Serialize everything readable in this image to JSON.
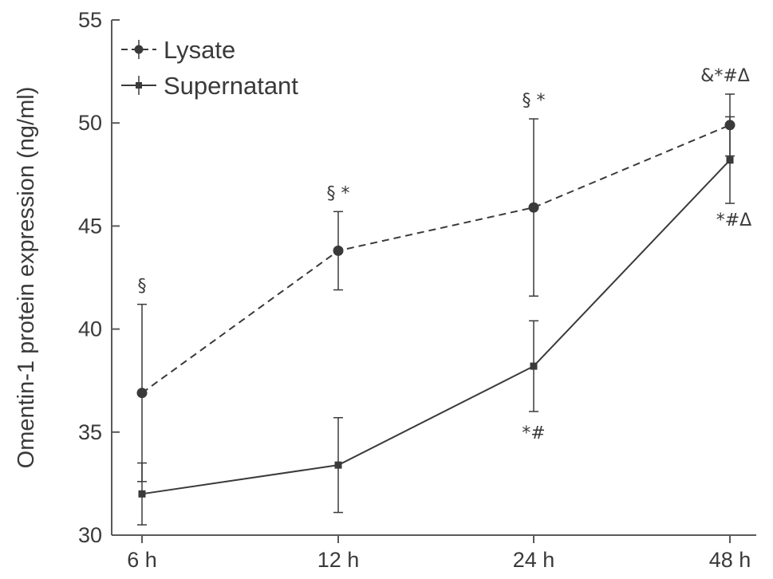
{
  "chart_data": {
    "type": "line",
    "title": "",
    "xlabel": "",
    "ylabel": "Omentin-1 protein expression (ng/ml)",
    "categories": [
      "6 h",
      "12 h",
      "24 h",
      "48 h"
    ],
    "ylim": [
      30,
      55
    ],
    "yticks": [
      30,
      35,
      40,
      45,
      50,
      55
    ],
    "legend_position": "top-left",
    "series": [
      {
        "name": "Lysate",
        "style": "dashed",
        "marker": "circle",
        "values": [
          36.9,
          43.8,
          45.9,
          49.9
        ],
        "error": [
          4.3,
          1.9,
          4.3,
          1.5
        ],
        "annotations": [
          "§",
          "§ *",
          "§ *",
          "&*#Δ"
        ]
      },
      {
        "name": "Supernatant",
        "style": "solid",
        "marker": "square",
        "values": [
          32.0,
          33.4,
          38.2,
          48.2
        ],
        "error": [
          1.5,
          2.3,
          2.2,
          2.1
        ],
        "annotations": [
          "",
          "",
          "*#",
          "*#Δ"
        ]
      }
    ],
    "colors": {
      "line": "#3a3a3a",
      "axis": "#5a5a5a"
    }
  }
}
